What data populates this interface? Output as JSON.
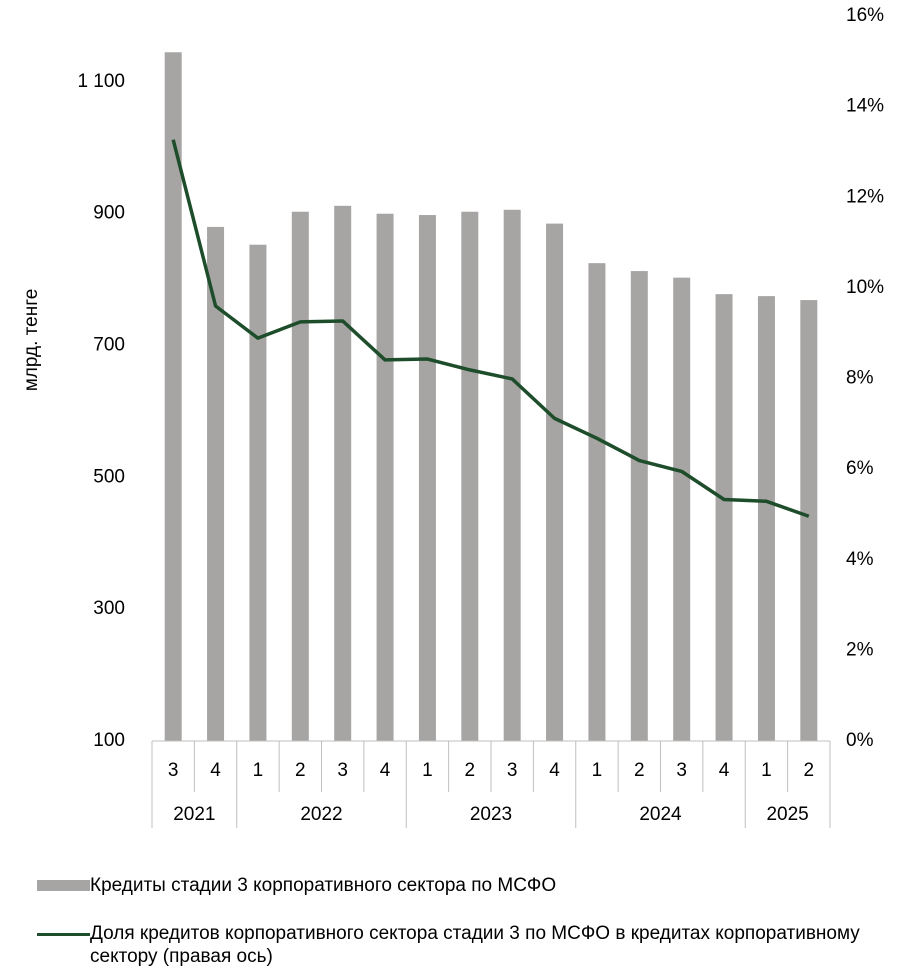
{
  "chart_data": {
    "type": "bar_line",
    "y_axis_label": "млрд. тенге",
    "groups": [
      {
        "name": "2021",
        "categories": [
          "3",
          "4"
        ]
      },
      {
        "name": "2022",
        "categories": [
          "1",
          "2",
          "3",
          "4"
        ]
      },
      {
        "name": "2023",
        "categories": [
          "1",
          "2",
          "3",
          "4"
        ]
      },
      {
        "name": "2024",
        "categories": [
          "1",
          "2",
          "3",
          "4"
        ]
      },
      {
        "name": "2025",
        "categories": [
          "1",
          "2"
        ]
      }
    ],
    "series": [
      {
        "name": "Кредиты стадии 3 корпоративного сектора по МСФО",
        "type": "bar",
        "color": "#a7a5a3",
        "values": [
          1145,
          880,
          853,
          903,
          912,
          900,
          898,
          903,
          906,
          885,
          825,
          813,
          803,
          778,
          775,
          769
        ]
      },
      {
        "name": "Доля кредитов корпоративного сектора стадии 3 по МСФО  в кредитах корпоративному сектору (правая ось)",
        "type": "line",
        "axis": "y2",
        "color": "#1d4d2a",
        "values": [
          13.27,
          9.6,
          8.89,
          9.25,
          9.27,
          8.41,
          8.43,
          8.19,
          7.99,
          7.12,
          6.68,
          6.19,
          5.95,
          5.33,
          5.29,
          4.96
        ]
      }
    ],
    "ylim": [
      100,
      1200
    ],
    "yticks": [
      100,
      300,
      500,
      700,
      900,
      {
        "value": 1100,
        "label": "1 100"
      }
    ],
    "y2lim": [
      0,
      16
    ],
    "y2ticks": [
      {
        "value": 0,
        "label": "0%"
      },
      {
        "value": 2,
        "label": "2%"
      },
      {
        "value": 4,
        "label": "4%"
      },
      {
        "value": 6,
        "label": "6%"
      },
      {
        "value": 8,
        "label": "8%"
      },
      {
        "value": 10,
        "label": "10%"
      },
      {
        "value": 12,
        "label": "12%"
      },
      {
        "value": 14,
        "label": "14%"
      },
      {
        "value": 16,
        "label": "16%"
      }
    ]
  }
}
